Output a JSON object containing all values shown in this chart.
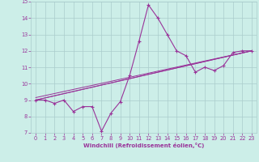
{
  "xlabel": "Windchill (Refroidissement éolien,°C)",
  "bg_color": "#cceee8",
  "grid_color": "#aacccc",
  "line_color": "#993399",
  "xlim": [
    -0.5,
    23.5
  ],
  "ylim": [
    7,
    15
  ],
  "yticks": [
    7,
    8,
    9,
    10,
    11,
    12,
    13,
    14,
    15
  ],
  "xticks": [
    0,
    1,
    2,
    3,
    4,
    5,
    6,
    7,
    8,
    9,
    10,
    11,
    12,
    13,
    14,
    15,
    16,
    17,
    18,
    19,
    20,
    21,
    22,
    23
  ],
  "line1_x": [
    0,
    1,
    2,
    3,
    4,
    5,
    6,
    7,
    8,
    9,
    10,
    11,
    12,
    13,
    14,
    15,
    16,
    17,
    18,
    19,
    20,
    21,
    22,
    23
  ],
  "line1_y": [
    9.0,
    9.0,
    8.8,
    9.0,
    8.3,
    8.6,
    8.6,
    7.1,
    8.2,
    8.9,
    10.5,
    12.6,
    14.8,
    14.0,
    13.0,
    12.0,
    11.7,
    10.7,
    11.0,
    10.8,
    11.1,
    11.9,
    12.0,
    12.0
  ],
  "line2_x": [
    0,
    23
  ],
  "line2_y": [
    9.0,
    12.0
  ],
  "line3_x": [
    0,
    23
  ],
  "line3_y": [
    9.0,
    12.0
  ],
  "line4_x": [
    0,
    23
  ],
  "line4_y": [
    9.15,
    12.0
  ]
}
